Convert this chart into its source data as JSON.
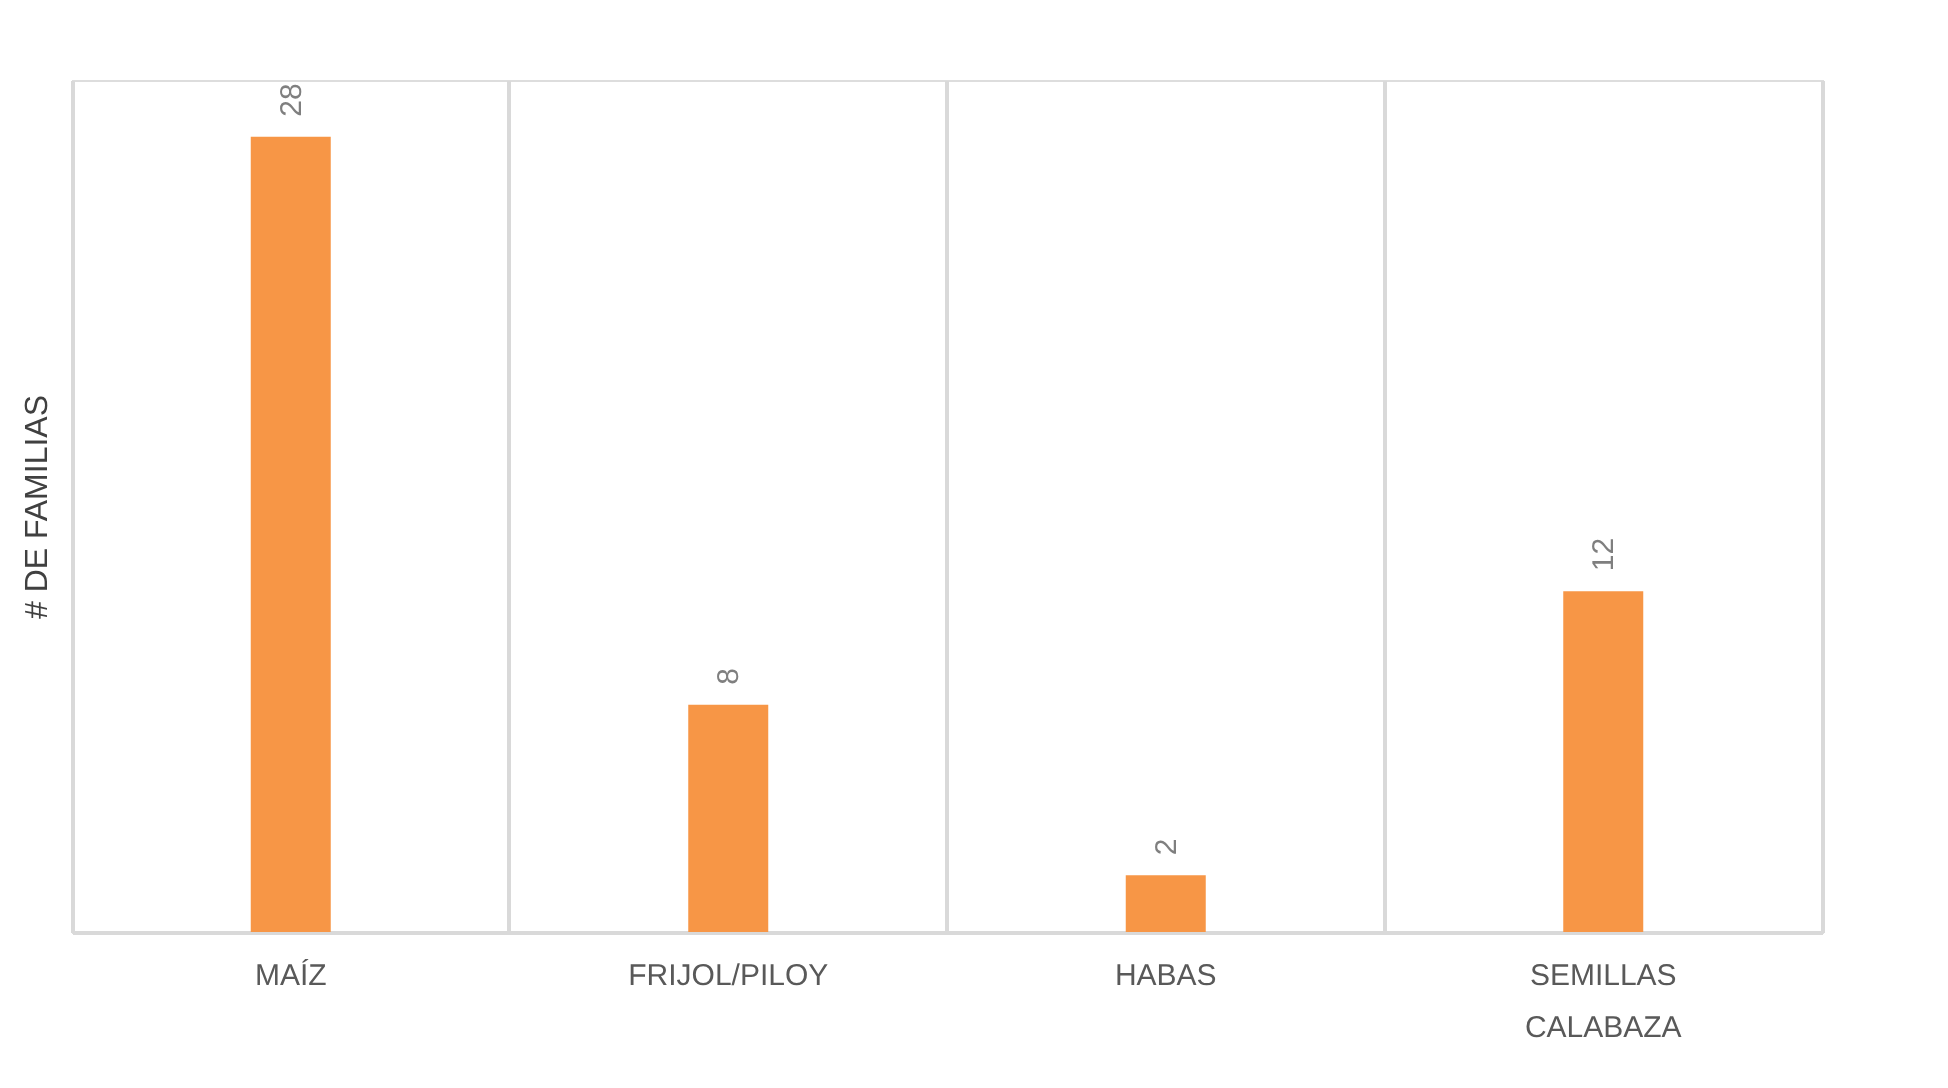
{
  "chart_data": {
    "type": "bar",
    "ylabel": "# DE FAMILIAS",
    "categories": [
      "MAÍZ",
      "FRIJOL/PILOY",
      "HABAS",
      "SEMILLAS CALABAZA"
    ],
    "values": [
      28,
      8,
      2,
      12
    ],
    "color": "#f79646",
    "ylim": [
      0,
      30
    ],
    "data_labels": true,
    "grid": "x",
    "tick_labels": "x"
  }
}
